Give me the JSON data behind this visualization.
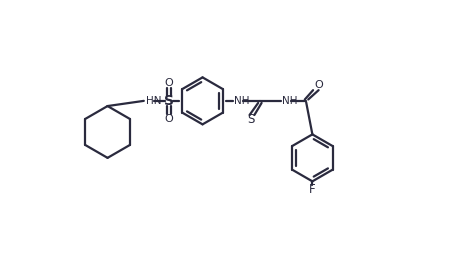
{
  "bg_color": "#ffffff",
  "line_color": "#2a2a3e",
  "line_width": 1.6,
  "fig_width": 4.5,
  "fig_height": 2.57,
  "dpi": 100,
  "xlim": [
    0,
    9.0
  ],
  "ylim": [
    -3.2,
    4.2
  ]
}
